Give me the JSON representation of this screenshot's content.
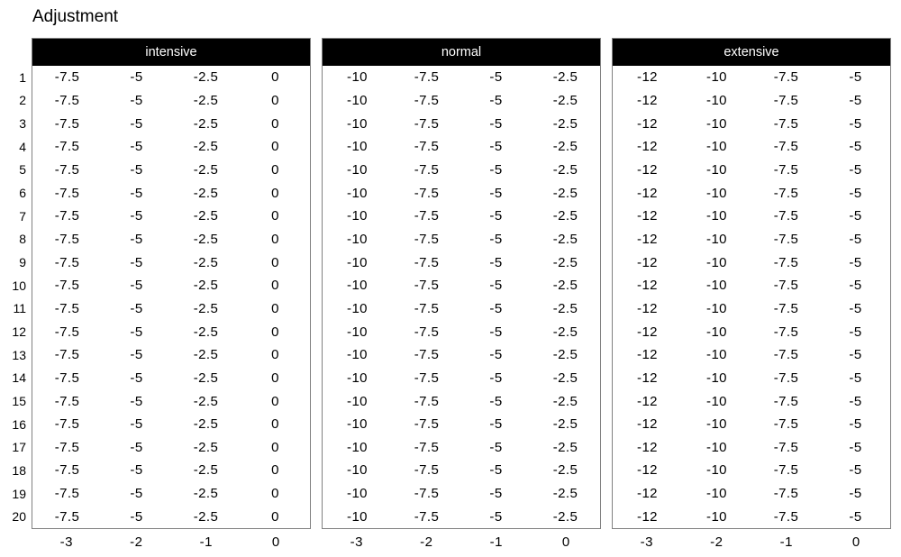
{
  "title": "Adjustment",
  "colors": {
    "header_bg": "#000000",
    "header_text": "#ffffff",
    "body_text": "#000000",
    "border": "#808080",
    "background": "#ffffff"
  },
  "chart_data": {
    "type": "table",
    "title": "Adjustment",
    "layout": "three table panels side by side, shared row numbers on left, x tick labels under each panel, black header strip per panel",
    "row_labels": [
      "1",
      "2",
      "3",
      "4",
      "5",
      "6",
      "7",
      "8",
      "9",
      "10",
      "11",
      "12",
      "13",
      "14",
      "15",
      "16",
      "17",
      "18",
      "19",
      "20"
    ],
    "x_tick_labels": [
      "-3",
      "-2",
      "-1",
      "0"
    ],
    "panels": [
      {
        "header": "intensive",
        "rows": [
          [
            "-7.5",
            "-5",
            "-2.5",
            "0"
          ],
          [
            "-7.5",
            "-5",
            "-2.5",
            "0"
          ],
          [
            "-7.5",
            "-5",
            "-2.5",
            "0"
          ],
          [
            "-7.5",
            "-5",
            "-2.5",
            "0"
          ],
          [
            "-7.5",
            "-5",
            "-2.5",
            "0"
          ],
          [
            "-7.5",
            "-5",
            "-2.5",
            "0"
          ],
          [
            "-7.5",
            "-5",
            "-2.5",
            "0"
          ],
          [
            "-7.5",
            "-5",
            "-2.5",
            "0"
          ],
          [
            "-7.5",
            "-5",
            "-2.5",
            "0"
          ],
          [
            "-7.5",
            "-5",
            "-2.5",
            "0"
          ],
          [
            "-7.5",
            "-5",
            "-2.5",
            "0"
          ],
          [
            "-7.5",
            "-5",
            "-2.5",
            "0"
          ],
          [
            "-7.5",
            "-5",
            "-2.5",
            "0"
          ],
          [
            "-7.5",
            "-5",
            "-2.5",
            "0"
          ],
          [
            "-7.5",
            "-5",
            "-2.5",
            "0"
          ],
          [
            "-7.5",
            "-5",
            "-2.5",
            "0"
          ],
          [
            "-7.5",
            "-5",
            "-2.5",
            "0"
          ],
          [
            "-7.5",
            "-5",
            "-2.5",
            "0"
          ],
          [
            "-7.5",
            "-5",
            "-2.5",
            "0"
          ],
          [
            "-7.5",
            "-5",
            "-2.5",
            "0"
          ]
        ]
      },
      {
        "header": "normal",
        "rows": [
          [
            "-10",
            "-7.5",
            "-5",
            "-2.5"
          ],
          [
            "-10",
            "-7.5",
            "-5",
            "-2.5"
          ],
          [
            "-10",
            "-7.5",
            "-5",
            "-2.5"
          ],
          [
            "-10",
            "-7.5",
            "-5",
            "-2.5"
          ],
          [
            "-10",
            "-7.5",
            "-5",
            "-2.5"
          ],
          [
            "-10",
            "-7.5",
            "-5",
            "-2.5"
          ],
          [
            "-10",
            "-7.5",
            "-5",
            "-2.5"
          ],
          [
            "-10",
            "-7.5",
            "-5",
            "-2.5"
          ],
          [
            "-10",
            "-7.5",
            "-5",
            "-2.5"
          ],
          [
            "-10",
            "-7.5",
            "-5",
            "-2.5"
          ],
          [
            "-10",
            "-7.5",
            "-5",
            "-2.5"
          ],
          [
            "-10",
            "-7.5",
            "-5",
            "-2.5"
          ],
          [
            "-10",
            "-7.5",
            "-5",
            "-2.5"
          ],
          [
            "-10",
            "-7.5",
            "-5",
            "-2.5"
          ],
          [
            "-10",
            "-7.5",
            "-5",
            "-2.5"
          ],
          [
            "-10",
            "-7.5",
            "-5",
            "-2.5"
          ],
          [
            "-10",
            "-7.5",
            "-5",
            "-2.5"
          ],
          [
            "-10",
            "-7.5",
            "-5",
            "-2.5"
          ],
          [
            "-10",
            "-7.5",
            "-5",
            "-2.5"
          ],
          [
            "-10",
            "-7.5",
            "-5",
            "-2.5"
          ]
        ]
      },
      {
        "header": "extensive",
        "rows": [
          [
            "-12",
            "-10",
            "-7.5",
            "-5"
          ],
          [
            "-12",
            "-10",
            "-7.5",
            "-5"
          ],
          [
            "-12",
            "-10",
            "-7.5",
            "-5"
          ],
          [
            "-12",
            "-10",
            "-7.5",
            "-5"
          ],
          [
            "-12",
            "-10",
            "-7.5",
            "-5"
          ],
          [
            "-12",
            "-10",
            "-7.5",
            "-5"
          ],
          [
            "-12",
            "-10",
            "-7.5",
            "-5"
          ],
          [
            "-12",
            "-10",
            "-7.5",
            "-5"
          ],
          [
            "-12",
            "-10",
            "-7.5",
            "-5"
          ],
          [
            "-12",
            "-10",
            "-7.5",
            "-5"
          ],
          [
            "-12",
            "-10",
            "-7.5",
            "-5"
          ],
          [
            "-12",
            "-10",
            "-7.5",
            "-5"
          ],
          [
            "-12",
            "-10",
            "-7.5",
            "-5"
          ],
          [
            "-12",
            "-10",
            "-7.5",
            "-5"
          ],
          [
            "-12",
            "-10",
            "-7.5",
            "-5"
          ],
          [
            "-12",
            "-10",
            "-7.5",
            "-5"
          ],
          [
            "-12",
            "-10",
            "-7.5",
            "-5"
          ],
          [
            "-12",
            "-10",
            "-7.5",
            "-5"
          ],
          [
            "-12",
            "-10",
            "-7.5",
            "-5"
          ],
          [
            "-12",
            "-10",
            "-7.5",
            "-5"
          ]
        ]
      }
    ]
  }
}
